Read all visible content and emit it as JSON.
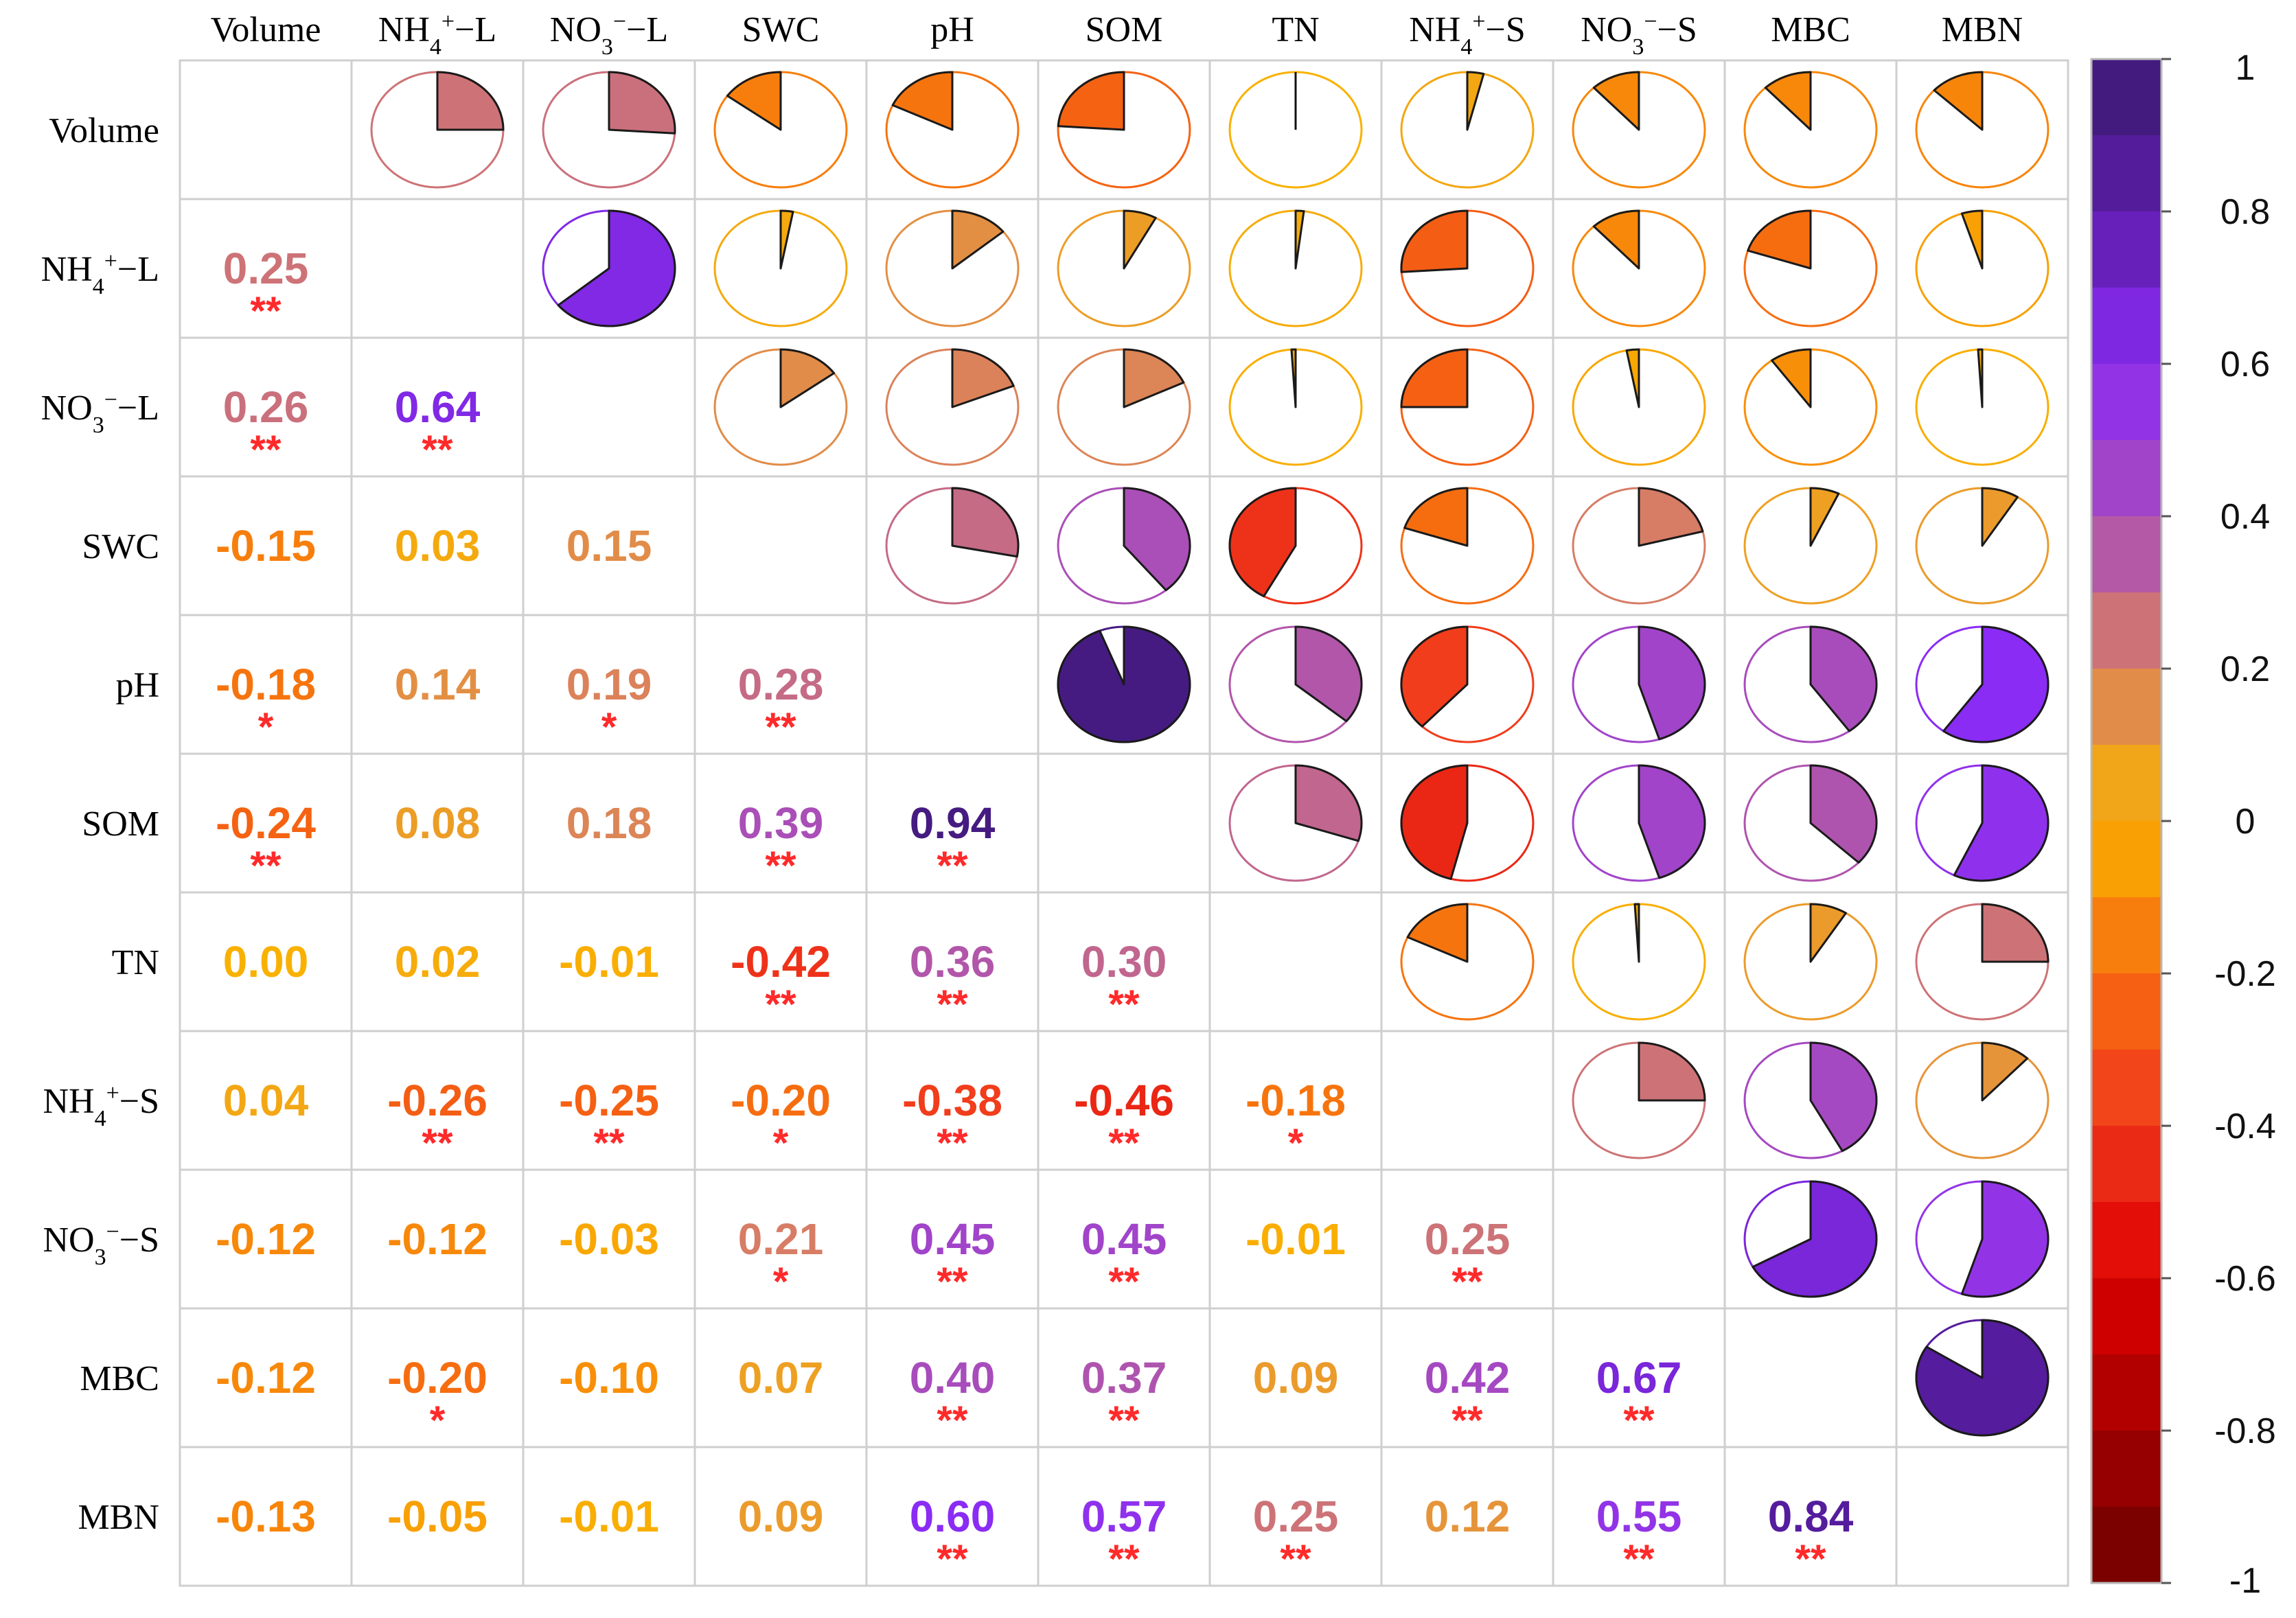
{
  "chart_data": {
    "type": "heatmap",
    "subtype": "correlation-matrix-pie-upper-number-lower",
    "variables": [
      {
        "name": "Volume",
        "base": "Volume",
        "sup": "",
        "sub": "",
        "suffix": ""
      },
      {
        "name": "NH4+-L",
        "base": "NH",
        "sub": "4",
        "sup": "+",
        "suffix": "−L"
      },
      {
        "name": "NO3--L",
        "base": "NO",
        "sub": "3",
        "sup": "−",
        "suffix": "−L"
      },
      {
        "name": "SWC",
        "base": "SWC",
        "sup": "",
        "sub": "",
        "suffix": ""
      },
      {
        "name": "pH",
        "base": "pH",
        "sup": "",
        "sub": "",
        "suffix": ""
      },
      {
        "name": "SOM",
        "base": "SOM",
        "sup": "",
        "sub": "",
        "suffix": ""
      },
      {
        "name": "TN",
        "base": "TN",
        "sup": "",
        "sub": "",
        "suffix": ""
      },
      {
        "name": "NH4+-S",
        "base": "NH",
        "sub": "4",
        "sup": "+",
        "suffix": "−S"
      },
      {
        "name": "NO3--S",
        "base": "NO",
        "sub": "3",
        "sup": "−",
        "suffix": "−S"
      },
      {
        "name": "MBC",
        "base": "MBC",
        "sup": "",
        "sub": "",
        "suffix": ""
      },
      {
        "name": "MBN",
        "base": "MBN",
        "sup": "",
        "sub": "",
        "suffix": ""
      }
    ],
    "lower_triangle": [
      [],
      [
        {
          "v": 0.25,
          "t": "0.25",
          "s": "**"
        }
      ],
      [
        {
          "v": 0.26,
          "t": "0.26",
          "s": "**"
        },
        {
          "v": 0.64,
          "t": "0.64",
          "s": "**"
        }
      ],
      [
        {
          "v": -0.15,
          "t": "-0.15",
          "s": ""
        },
        {
          "v": 0.03,
          "t": "0.03",
          "s": ""
        },
        {
          "v": 0.15,
          "t": "0.15",
          "s": ""
        }
      ],
      [
        {
          "v": -0.18,
          "t": "-0.18",
          "s": "*"
        },
        {
          "v": 0.14,
          "t": "0.14",
          "s": ""
        },
        {
          "v": 0.19,
          "t": "0.19",
          "s": "*"
        },
        {
          "v": 0.28,
          "t": "0.28",
          "s": "**"
        }
      ],
      [
        {
          "v": -0.24,
          "t": "-0.24",
          "s": "**"
        },
        {
          "v": 0.08,
          "t": "0.08",
          "s": ""
        },
        {
          "v": 0.18,
          "t": "0.18",
          "s": ""
        },
        {
          "v": 0.39,
          "t": "0.39",
          "s": "**"
        },
        {
          "v": 0.94,
          "t": "0.94",
          "s": "**"
        }
      ],
      [
        {
          "v": 0.0,
          "t": "0.00",
          "s": ""
        },
        {
          "v": 0.02,
          "t": "0.02",
          "s": ""
        },
        {
          "v": -0.01,
          "t": "-0.01",
          "s": ""
        },
        {
          "v": -0.42,
          "t": "-0.42",
          "s": "**"
        },
        {
          "v": 0.36,
          "t": "0.36",
          "s": "**"
        },
        {
          "v": 0.3,
          "t": "0.30",
          "s": "**"
        }
      ],
      [
        {
          "v": 0.04,
          "t": "0.04",
          "s": ""
        },
        {
          "v": -0.26,
          "t": "-0.26",
          "s": "**"
        },
        {
          "v": -0.25,
          "t": "-0.25",
          "s": "**"
        },
        {
          "v": -0.2,
          "t": "-0.20",
          "s": "*"
        },
        {
          "v": -0.38,
          "t": "-0.38",
          "s": "**"
        },
        {
          "v": -0.46,
          "t": "-0.46",
          "s": "**"
        },
        {
          "v": -0.18,
          "t": "-0.18",
          "s": "*"
        }
      ],
      [
        {
          "v": -0.12,
          "t": "-0.12",
          "s": ""
        },
        {
          "v": -0.12,
          "t": "-0.12",
          "s": ""
        },
        {
          "v": -0.03,
          "t": "-0.03",
          "s": ""
        },
        {
          "v": 0.21,
          "t": "0.21",
          "s": "*"
        },
        {
          "v": 0.45,
          "t": "0.45",
          "s": "**"
        },
        {
          "v": 0.45,
          "t": "0.45",
          "s": "**"
        },
        {
          "v": -0.01,
          "t": "-0.01",
          "s": ""
        },
        {
          "v": 0.25,
          "t": "0.25",
          "s": "**"
        }
      ],
      [
        {
          "v": -0.12,
          "t": "-0.12",
          "s": ""
        },
        {
          "v": -0.2,
          "t": "-0.20",
          "s": "*"
        },
        {
          "v": -0.1,
          "t": "-0.10",
          "s": ""
        },
        {
          "v": 0.07,
          "t": "0.07",
          "s": ""
        },
        {
          "v": 0.4,
          "t": "0.40",
          "s": "**"
        },
        {
          "v": 0.37,
          "t": "0.37",
          "s": "**"
        },
        {
          "v": 0.09,
          "t": "0.09",
          "s": ""
        },
        {
          "v": 0.42,
          "t": "0.42",
          "s": "**"
        },
        {
          "v": 0.67,
          "t": "0.67",
          "s": "**"
        }
      ],
      [
        {
          "v": -0.13,
          "t": "-0.13",
          "s": ""
        },
        {
          "v": -0.05,
          "t": "-0.05",
          "s": ""
        },
        {
          "v": -0.01,
          "t": "-0.01",
          "s": ""
        },
        {
          "v": 0.09,
          "t": "0.09",
          "s": ""
        },
        {
          "v": 0.6,
          "t": "0.60",
          "s": "**"
        },
        {
          "v": 0.57,
          "t": "0.57",
          "s": "**"
        },
        {
          "v": 0.25,
          "t": "0.25",
          "s": "**"
        },
        {
          "v": 0.12,
          "t": "0.12",
          "s": ""
        },
        {
          "v": 0.55,
          "t": "0.55",
          "s": "**"
        },
        {
          "v": 0.84,
          "t": "0.84",
          "s": "**"
        }
      ]
    ],
    "colorbar": {
      "range": [
        -1,
        1
      ],
      "ticks": [
        1,
        0.8,
        0.6,
        0.4,
        0.2,
        0,
        -0.2,
        -0.4,
        -0.6,
        -0.8,
        -1
      ],
      "tick_labels": [
        "1",
        "0.8",
        "0.6",
        "0.4",
        "0.2",
        "0",
        "-0.2",
        "-0.4",
        "-0.6",
        "-0.8",
        "-1"
      ],
      "stops": [
        {
          "v": -1.0,
          "c": "#6e0000"
        },
        {
          "v": -0.8,
          "c": "#a30000"
        },
        {
          "v": -0.6,
          "c": "#dd0000"
        },
        {
          "v": -0.4,
          "c": "#f0381c"
        },
        {
          "v": -0.2,
          "c": "#f66d10"
        },
        {
          "v": 0.0,
          "c": "#f9b100"
        },
        {
          "v": 0.2,
          "c": "#d98060"
        },
        {
          "v": 0.4,
          "c": "#a84cbc"
        },
        {
          "v": 0.6,
          "c": "#8a2cf4"
        },
        {
          "v": 0.8,
          "c": "#5c1ca8"
        },
        {
          "v": 1.0,
          "c": "#3b1a70"
        }
      ]
    },
    "significance_color": "#ff2a2a"
  }
}
